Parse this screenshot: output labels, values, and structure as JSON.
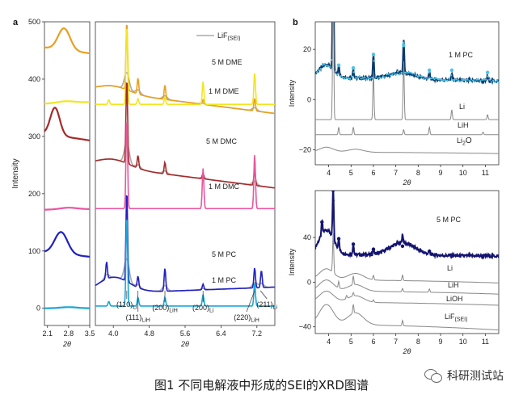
{
  "caption": "图1 不同电解液中形成的SEI的XRD图谱",
  "watermark": {
    "icon": "wechat-icon",
    "text": "科研测试站"
  },
  "chart_data": [
    {
      "id": "a",
      "panel_label": "a",
      "type": "line",
      "ylabel": "Intensity",
      "xlabel": "2θ",
      "ylim": [
        -30,
        500
      ],
      "yticks": [
        0,
        100,
        200,
        300,
        400,
        500
      ],
      "left": {
        "xlim": [
          2.0,
          3.5
        ],
        "xticks": [
          2.1,
          2.8,
          3.5
        ],
        "series": [
          {
            "name": "5 M DME",
            "color": "#e8a020",
            "base": 455,
            "peak": {
              "x": 2.65,
              "h": 38,
              "w": 0.28
            },
            "slope": -10
          },
          {
            "name": "1 M DME",
            "color": "#f2e51e",
            "base": 357,
            "peak": {
              "x": 2.7,
              "h": 3,
              "w": 0.4
            },
            "slope": 3
          },
          {
            "name": "5 M DMC",
            "color": "#a52a2a",
            "base": 305,
            "peak": {
              "x": 2.35,
              "h": 48,
              "w": 0.22
            },
            "slope": -12
          },
          {
            "name": "1 M DMC",
            "color": "#e8579f",
            "base": 172,
            "peak": {
              "x": 2.8,
              "h": 3,
              "w": 0.4
            },
            "slope": 1
          },
          {
            "name": "5 M PC",
            "color": "#2020c0",
            "base": 98,
            "peak": {
              "x": 2.55,
              "h": 38,
              "w": 0.3
            },
            "slope": -8
          },
          {
            "name": "1 M PC",
            "color": "#1aa6d8",
            "base": 0,
            "peak": {
              "x": 2.8,
              "h": 2,
              "w": 0.4
            },
            "slope": 0
          }
        ]
      },
      "right": {
        "xlim": [
          3.6,
          7.6
        ],
        "xticks": [
          4.0,
          4.8,
          5.6,
          6.4,
          7.2
        ],
        "series": [
          {
            "name": "5 M DME",
            "label": "5 M DME",
            "color": "#e8a020",
            "base": 380,
            "baseline_slope": -40,
            "hump": 12,
            "peaks": [
              [
                4.3,
                120
              ],
              [
                4.55,
                28
              ],
              [
                5.15,
                25
              ],
              [
                6.0,
                8
              ],
              [
                7.15,
                22
              ]
            ]
          },
          {
            "name": "1 M DME",
            "label": "1 M DME",
            "color": "#f2e51e",
            "base": 356,
            "baseline_slope": 0,
            "hump": 0,
            "peaks": [
              [
                3.9,
                8
              ],
              [
                4.3,
                140
              ],
              [
                4.55,
                10
              ],
              [
                5.15,
                12
              ],
              [
                6.0,
                40
              ],
              [
                7.15,
                55
              ]
            ]
          },
          {
            "name": "5 M DMC",
            "label": "5 M DMC",
            "color": "#a52a2a",
            "base": 250,
            "baseline_slope": -40,
            "hump": 14,
            "peaks": [
              [
                4.3,
                150
              ],
              [
                4.55,
                22
              ],
              [
                5.15,
                20
              ],
              [
                6.0,
                10
              ],
              [
                7.15,
                28
              ]
            ]
          },
          {
            "name": "1 M DMC",
            "label": "1 M DMC",
            "color": "#e8579f",
            "base": 174,
            "baseline_slope": 0,
            "hump": 0,
            "peaks": [
              [
                4.3,
                160
              ],
              [
                6.0,
                70
              ],
              [
                7.15,
                95
              ]
            ]
          },
          {
            "name": "5 M PC",
            "label": "5 M PC",
            "color": "#2020c0",
            "base": 25,
            "baseline_slope": 12,
            "hump": 28,
            "peaks": [
              [
                3.85,
                30
              ],
              [
                4.3,
                160
              ],
              [
                4.55,
                20
              ],
              [
                5.15,
                40
              ],
              [
                6.0,
                10
              ],
              [
                7.15,
                35
              ],
              [
                7.3,
                30
              ]
            ]
          },
          {
            "name": "1 M PC",
            "label": "1 M PC",
            "color": "#1aa6d8",
            "base": 4,
            "baseline_slope": 0,
            "hump": 0,
            "peaks": [
              [
                3.9,
                8
              ],
              [
                4.3,
                160
              ],
              [
                4.55,
                15
              ],
              [
                5.15,
                15
              ],
              [
                6.0,
                20
              ],
              [
                7.15,
                40
              ]
            ]
          }
        ],
        "reference": {
          "name": "LiF(SEI)",
          "color": "#aaaaaa"
        },
        "legend": {
          "line_label": "LiF",
          "sub": "(SEI)",
          "placement": "top-right"
        },
        "annotations": [
          {
            "text": "(110)",
            "sub": "Li",
            "x": 4.3
          },
          {
            "text": "(111)",
            "sub": "LiH",
            "x": 4.55
          },
          {
            "text": "(200)",
            "sub": "LiH",
            "x": 5.15
          },
          {
            "text": "(200)",
            "sub": "Li",
            "x": 6.0
          },
          {
            "text": "(220)",
            "sub": "LiH",
            "x": 7.15
          },
          {
            "text": "(211)",
            "sub": "Li",
            "x": 7.28
          }
        ]
      }
    },
    {
      "id": "b1",
      "panel_label": "b",
      "type": "line",
      "ylabel": "Intensity",
      "xlabel": "2θ",
      "xlim": [
        3.4,
        11.6
      ],
      "xticks": [
        4,
        5,
        6,
        7,
        8,
        9,
        10,
        11
      ],
      "ylim": [
        -26,
        31
      ],
      "yticks": [
        -20,
        0,
        20
      ],
      "series": [
        {
          "name": "1 M PC",
          "label": "1 M PC",
          "color": "#0b3a6b",
          "marker_color": "#4cc3e8",
          "base": 9,
          "hump": 5,
          "peaks": [
            [
              4.2,
              60
            ],
            [
              4.45,
              4
            ],
            [
              5.1,
              4
            ],
            [
              6.0,
              10
            ],
            [
              7.35,
              14
            ],
            [
              8.5,
              3
            ],
            [
              9.5,
              3
            ],
            [
              11.1,
              2
            ]
          ]
        },
        {
          "name": "Li",
          "label": "Li",
          "color": "#888888",
          "base": -8,
          "hump": 0,
          "peaks": [
            [
              4.2,
              55
            ],
            [
              6.0,
              19
            ],
            [
              7.35,
              24
            ],
            [
              9.5,
              4
            ],
            [
              11.1,
              2
            ]
          ]
        },
        {
          "name": "LiH",
          "label": "LiH",
          "color": "#888888",
          "base": -14,
          "hump": 0,
          "peaks": [
            [
              4.45,
              3
            ],
            [
              5.1,
              3
            ],
            [
              7.35,
              2
            ],
            [
              8.5,
              3
            ],
            [
              10.9,
              1
            ]
          ]
        },
        {
          "name": "Li2O",
          "label": "Li",
          "label_sub": "2",
          "label_suffix": "O",
          "color": "#888888",
          "base": -21,
          "hump": 2,
          "peaks": []
        }
      ]
    },
    {
      "id": "b2",
      "panel_label": "",
      "type": "line",
      "ylabel": "Intensity",
      "xlabel": "2θ",
      "xlim": [
        3.4,
        11.6
      ],
      "xticks": [
        4,
        5,
        6,
        7,
        8,
        9,
        10,
        11
      ],
      "ylim": [
        -46,
        82
      ],
      "yticks": [
        -40,
        0,
        40
      ],
      "series": [
        {
          "name": "5 M PC",
          "label": "5 M PC",
          "color": "#141470",
          "marker_color": "#141470",
          "base": 25,
          "hump": 22,
          "peaks": [
            [
              3.7,
              12
            ],
            [
              4.2,
              48
            ],
            [
              4.45,
              10
            ],
            [
              5.1,
              10
            ],
            [
              6.0,
              5
            ],
            [
              7.3,
              8
            ],
            [
              8.5,
              3
            ]
          ]
        },
        {
          "name": "Li",
          "label": "Li",
          "color": "#888888",
          "base": 2,
          "hump": 10,
          "peaks": [
            [
              4.2,
              35
            ],
            [
              6.0,
              4
            ],
            [
              7.3,
              5
            ]
          ]
        },
        {
          "name": "LiH",
          "label": "LiH",
          "color": "#888888",
          "base": -8,
          "hump": 10,
          "peaks": [
            [
              4.45,
              6
            ],
            [
              5.1,
              8
            ],
            [
              7.3,
              3
            ],
            [
              8.5,
              3
            ]
          ]
        },
        {
          "name": "LiOH",
          "label": "LiOH",
          "color": "#888888",
          "base": -18,
          "hump": 10,
          "peaks": [
            [
              4.8,
              3
            ],
            [
              5.1,
              3
            ],
            [
              6.0,
              2
            ]
          ]
        },
        {
          "name": "LiF(SEI)",
          "label": "LiF",
          "label_sub": "(SEI)",
          "color": "#888888",
          "base": -38,
          "hump": 18,
          "peaks": [
            [
              5.1,
              8
            ],
            [
              7.3,
              5
            ]
          ]
        }
      ]
    }
  ]
}
